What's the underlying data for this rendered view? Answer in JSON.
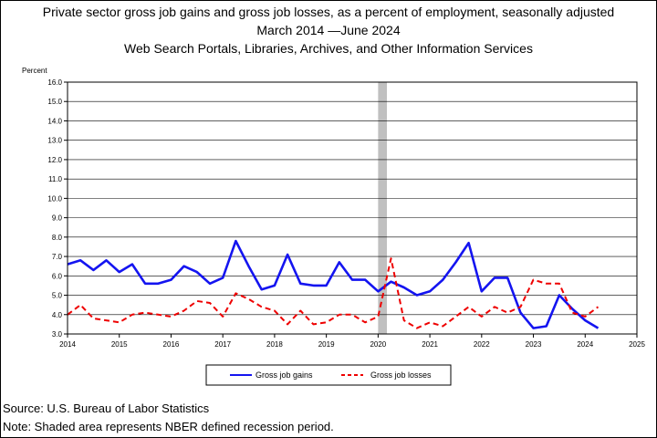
{
  "title_lines": [
    "Private sector gross job gains and gross job losses, as a percent of employment, seasonally adjusted",
    "March 2014 —June 2024",
    "Web Search Portals, Libraries, Archives, and Other Information Services"
  ],
  "footer": {
    "source": "Source: U.S. Bureau of Labor Statistics",
    "note": "Note: Shaded area represents NBER defined recession period."
  },
  "chart_data": {
    "type": "line",
    "title": "Private sector gross job gains and gross job losses, as a percent of employment, seasonally adjusted",
    "ylabel": "Percent",
    "xlabel": "",
    "xlim": [
      2014,
      2025
    ],
    "ylim": [
      3.0,
      16.0
    ],
    "ytick_step": 1.0,
    "yticks": [
      "3.0",
      "4.0",
      "5.0",
      "6.0",
      "7.0",
      "8.0",
      "9.0",
      "10.0",
      "11.0",
      "12.0",
      "13.0",
      "14.0",
      "15.0",
      "16.0"
    ],
    "xticks": [
      "2014",
      "2015",
      "2016",
      "2017",
      "2018",
      "2019",
      "2020",
      "2021",
      "2022",
      "2023",
      "2024",
      "2025"
    ],
    "grid": "horizontal",
    "legend_position": "bottom",
    "recession_shading": [
      2020.0,
      2020.17
    ],
    "series": [
      {
        "name": "Gross job gains",
        "color": "#1414f0",
        "style": "solid",
        "values": [
          [
            2014.0,
            6.6
          ],
          [
            2014.25,
            6.8
          ],
          [
            2014.5,
            6.3
          ],
          [
            2014.75,
            6.8
          ],
          [
            2015.0,
            6.2
          ],
          [
            2015.25,
            6.6
          ],
          [
            2015.5,
            5.6
          ],
          [
            2015.75,
            5.6
          ],
          [
            2016.0,
            5.8
          ],
          [
            2016.25,
            6.5
          ],
          [
            2016.5,
            6.2
          ],
          [
            2016.75,
            5.6
          ],
          [
            2017.0,
            5.9
          ],
          [
            2017.25,
            7.8
          ],
          [
            2017.5,
            6.5
          ],
          [
            2017.75,
            5.3
          ],
          [
            2018.0,
            5.5
          ],
          [
            2018.25,
            7.1
          ],
          [
            2018.5,
            5.6
          ],
          [
            2018.75,
            5.5
          ],
          [
            2019.0,
            5.5
          ],
          [
            2019.25,
            6.7
          ],
          [
            2019.5,
            5.8
          ],
          [
            2019.75,
            5.8
          ],
          [
            2020.0,
            5.2
          ],
          [
            2020.25,
            5.7
          ],
          [
            2020.5,
            5.4
          ],
          [
            2020.75,
            5.0
          ],
          [
            2021.0,
            5.2
          ],
          [
            2021.25,
            5.8
          ],
          [
            2021.5,
            6.7
          ],
          [
            2021.75,
            7.7
          ],
          [
            2022.0,
            5.2
          ],
          [
            2022.25,
            5.9
          ],
          [
            2022.5,
            5.9
          ],
          [
            2022.75,
            4.1
          ],
          [
            2023.0,
            3.3
          ],
          [
            2023.25,
            3.4
          ],
          [
            2023.5,
            5.0
          ],
          [
            2023.75,
            4.3
          ],
          [
            2024.0,
            3.7
          ],
          [
            2024.25,
            3.3
          ]
        ]
      },
      {
        "name": "Gross job losses",
        "color": "#ee0000",
        "style": "dashed",
        "values": [
          [
            2014.0,
            4.0
          ],
          [
            2014.25,
            4.5
          ],
          [
            2014.5,
            3.8
          ],
          [
            2014.75,
            3.7
          ],
          [
            2015.0,
            3.6
          ],
          [
            2015.25,
            4.0
          ],
          [
            2015.5,
            4.1
          ],
          [
            2015.75,
            4.0
          ],
          [
            2016.0,
            3.9
          ],
          [
            2016.25,
            4.2
          ],
          [
            2016.5,
            4.7
          ],
          [
            2016.75,
            4.6
          ],
          [
            2017.0,
            3.9
          ],
          [
            2017.25,
            5.1
          ],
          [
            2017.5,
            4.8
          ],
          [
            2017.75,
            4.4
          ],
          [
            2018.0,
            4.2
          ],
          [
            2018.25,
            3.5
          ],
          [
            2018.5,
            4.2
          ],
          [
            2018.75,
            3.5
          ],
          [
            2019.0,
            3.6
          ],
          [
            2019.25,
            4.0
          ],
          [
            2019.5,
            4.0
          ],
          [
            2019.75,
            3.6
          ],
          [
            2020.0,
            3.9
          ],
          [
            2020.25,
            6.9
          ],
          [
            2020.5,
            3.7
          ],
          [
            2020.75,
            3.3
          ],
          [
            2021.0,
            3.6
          ],
          [
            2021.25,
            3.4
          ],
          [
            2021.5,
            3.9
          ],
          [
            2021.75,
            4.4
          ],
          [
            2022.0,
            3.9
          ],
          [
            2022.25,
            4.4
          ],
          [
            2022.5,
            4.1
          ],
          [
            2022.75,
            4.4
          ],
          [
            2023.0,
            5.8
          ],
          [
            2023.25,
            5.6
          ],
          [
            2023.5,
            5.6
          ],
          [
            2023.75,
            4.1
          ],
          [
            2024.0,
            3.9
          ],
          [
            2024.25,
            4.4
          ]
        ]
      }
    ]
  }
}
